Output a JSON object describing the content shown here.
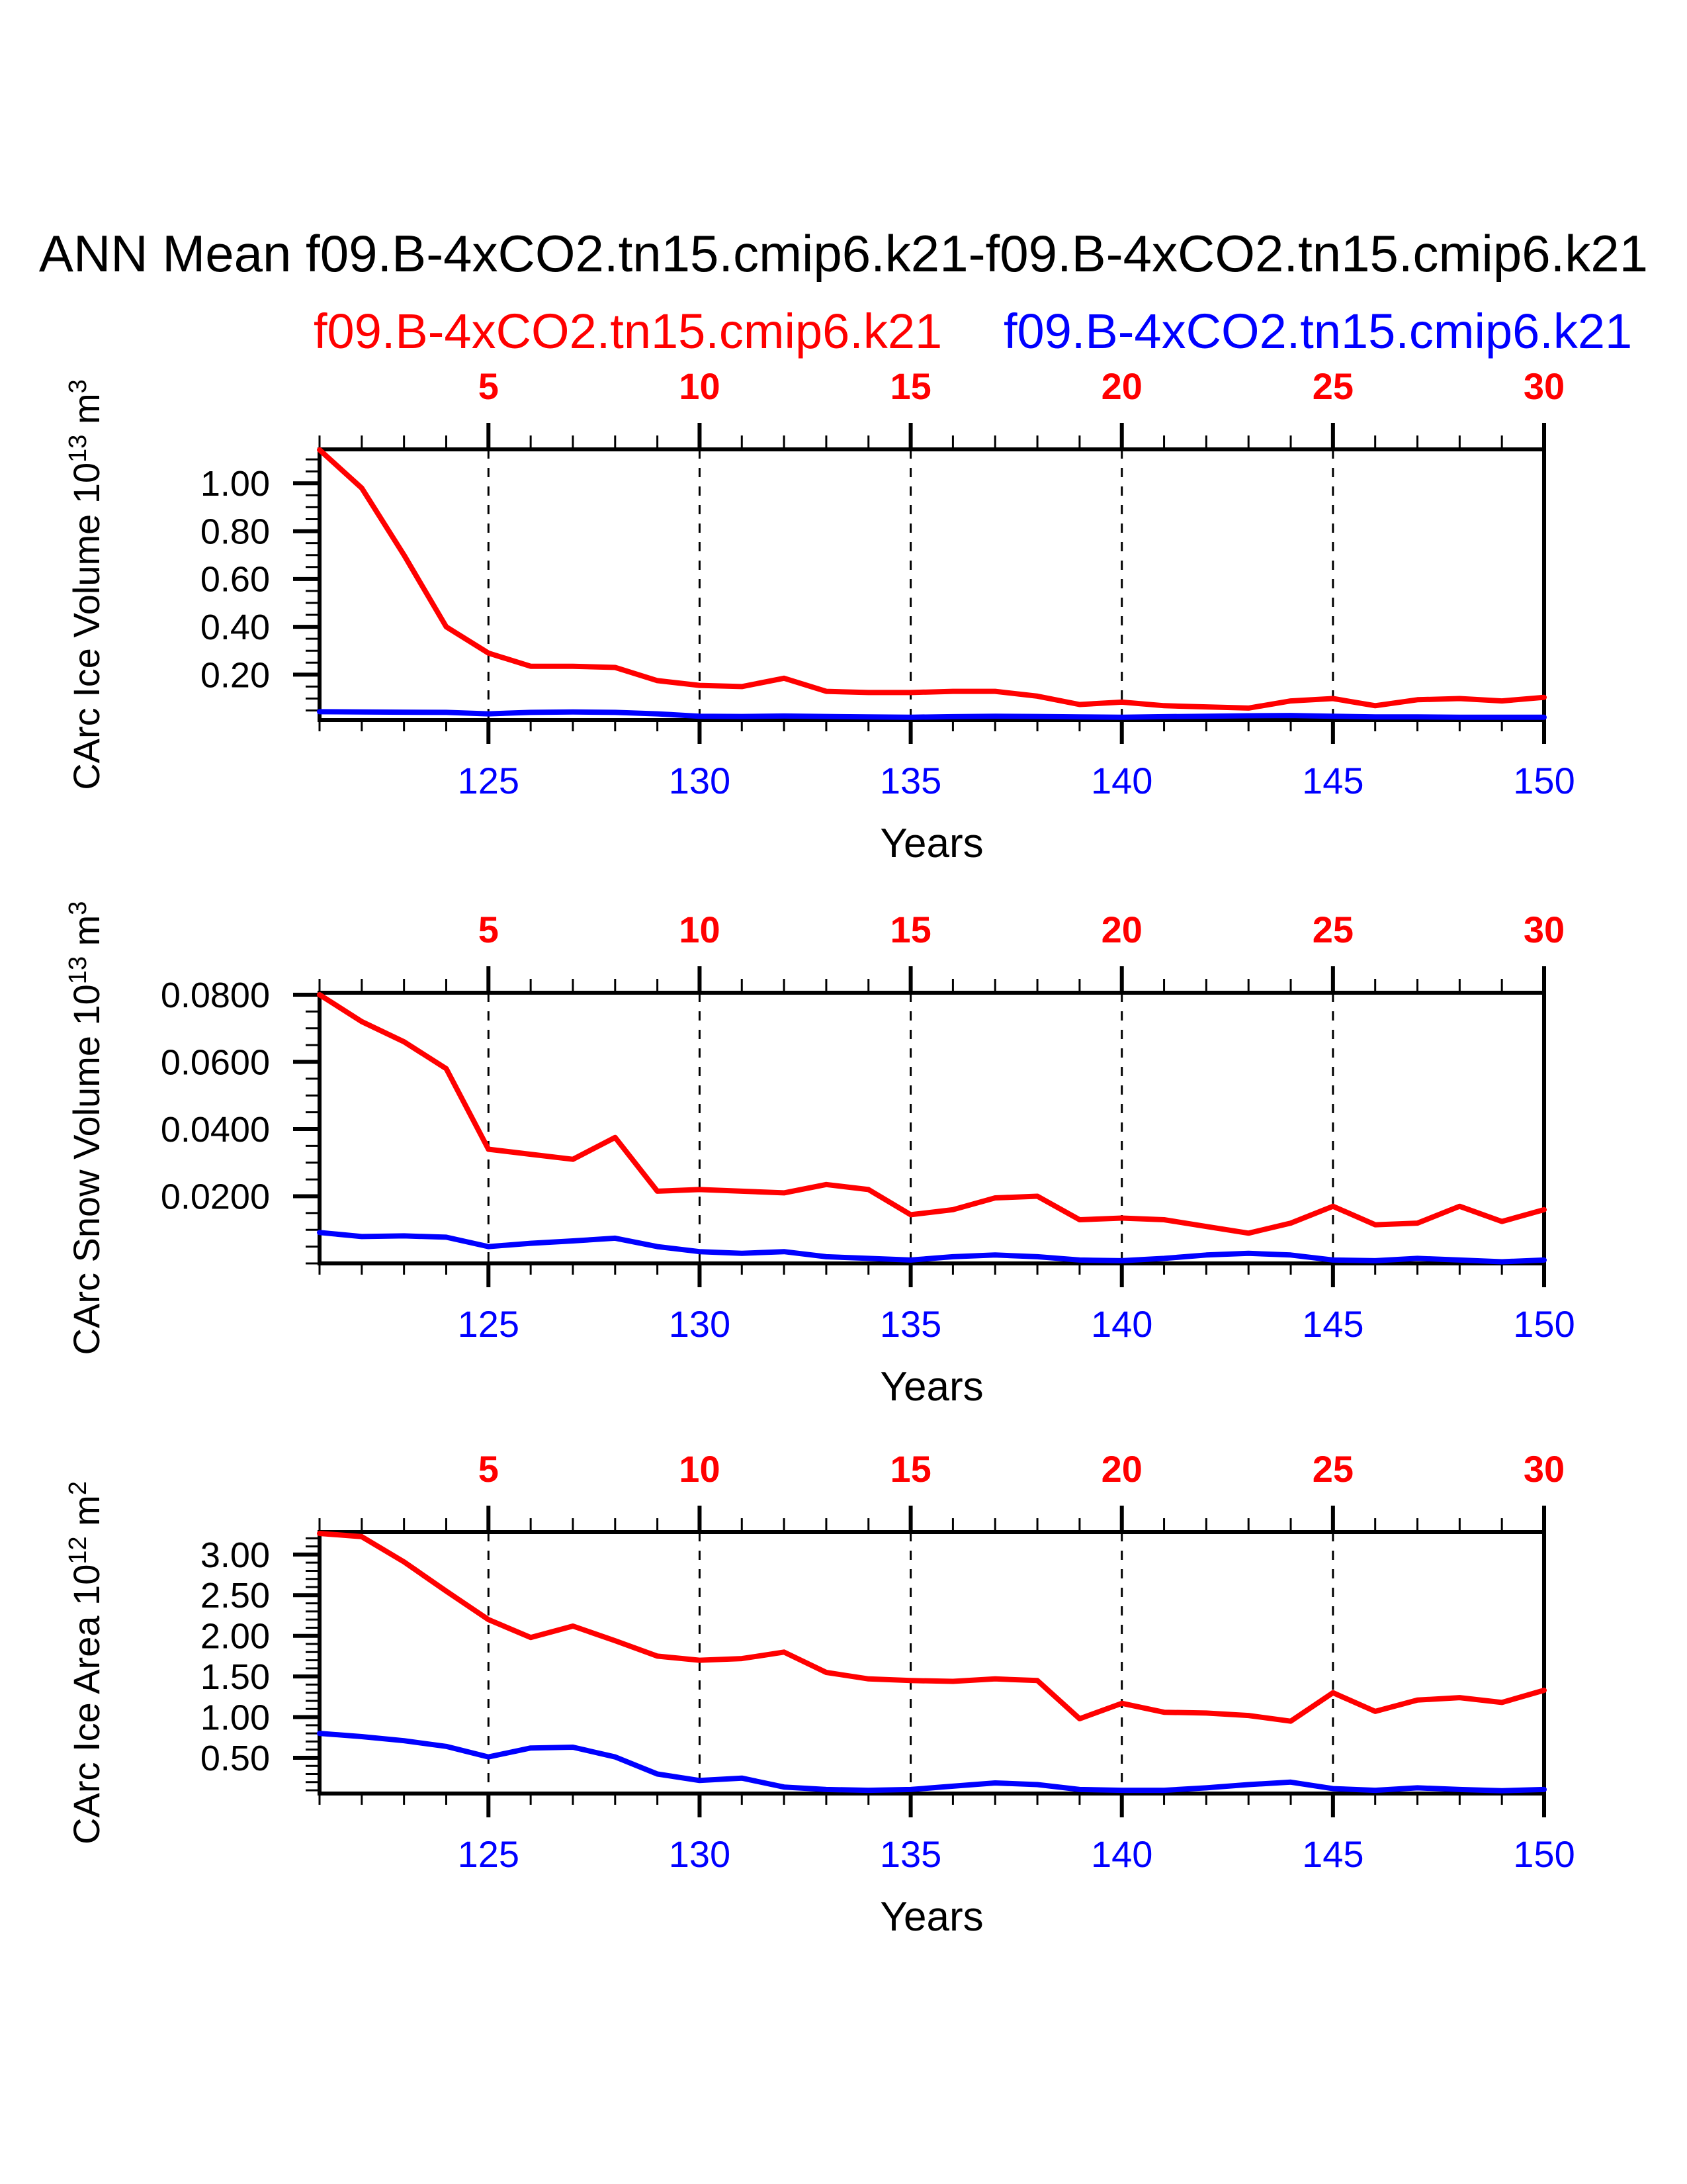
{
  "title": "ANN Mean f09.B-4xCO2.tn15.cmip6.k21-f09.B-4xCO2.tn15.cmip6.k21",
  "legend": {
    "series": [
      {
        "label": "f09.B-4xCO2.tn15.cmip6.k21",
        "color": "#ff0000"
      },
      {
        "label": "f09.B-4xCO2.tn15.cmip6.k21",
        "color": "#0000ff"
      }
    ]
  },
  "colors": {
    "red": "#ff0000",
    "blue": "#0000ff",
    "axis": "#000000",
    "background": "#ffffff"
  },
  "years": [
    121,
    122,
    123,
    124,
    125,
    126,
    127,
    128,
    129,
    130,
    131,
    132,
    133,
    134,
    135,
    136,
    137,
    138,
    139,
    140,
    141,
    142,
    143,
    144,
    145,
    146,
    147,
    148,
    149,
    150
  ],
  "chart_data": [
    {
      "id": "ice-volume",
      "type": "line",
      "ylabel": {
        "text": "CArc Ice Volume",
        "scale": "10",
        "scale_exp": "13",
        "unit": "m",
        "unit_exp": "3"
      },
      "xlabel": "Years",
      "top_axis_ticks": [
        5,
        10,
        15,
        20,
        25,
        30
      ],
      "bottom_axis_ticks": [
        125,
        130,
        135,
        140,
        145,
        150
      ],
      "grid_years": [
        125,
        130,
        135,
        140,
        145
      ],
      "top_axis_offset": -120,
      "ylim": [
        0.01,
        1.142
      ],
      "ytick_values": [
        0.2,
        0.4,
        0.6,
        0.8,
        1.0
      ],
      "ytick_labels": [
        "0.20",
        "0.40",
        "0.60",
        "0.80",
        "1.00"
      ],
      "y_minor_step": 0.05,
      "grid": "x-dashed",
      "legend_position": "top",
      "series": [
        {
          "name": "f09.B-4xCO2.tn15.cmip6.k21",
          "color": "#ff0000",
          "values": [
            1.14,
            0.98,
            0.7,
            0.4,
            0.29,
            0.235,
            0.235,
            0.23,
            0.175,
            0.155,
            0.15,
            0.185,
            0.13,
            0.125,
            0.125,
            0.13,
            0.13,
            0.11,
            0.075,
            0.085,
            0.07,
            0.065,
            0.06,
            0.09,
            0.1,
            0.07,
            0.095,
            0.1,
            0.09,
            0.105
          ]
        },
        {
          "name": "f09.B-4xCO2.tn15.cmip6.k21",
          "color": "#0000ff",
          "values": [
            0.045,
            0.044,
            0.043,
            0.042,
            0.036,
            0.042,
            0.044,
            0.042,
            0.036,
            0.026,
            0.025,
            0.027,
            0.025,
            0.023,
            0.022,
            0.024,
            0.026,
            0.025,
            0.023,
            0.022,
            0.024,
            0.026,
            0.028,
            0.029,
            0.026,
            0.023,
            0.023,
            0.022,
            0.022,
            0.022
          ]
        }
      ]
    },
    {
      "id": "snow-volume",
      "type": "line",
      "ylabel": {
        "text": "CArc Snow Volume",
        "scale": "10",
        "scale_exp": "13",
        "unit": "m",
        "unit_exp": "3"
      },
      "xlabel": "Years",
      "top_axis_ticks": [
        5,
        10,
        15,
        20,
        25,
        30
      ],
      "bottom_axis_ticks": [
        125,
        130,
        135,
        140,
        145,
        150
      ],
      "grid_years": [
        125,
        130,
        135,
        140,
        145
      ],
      "top_axis_offset": -120,
      "ylim": [
        0.0,
        0.0806
      ],
      "ytick_values": [
        0.02,
        0.04,
        0.06,
        0.08
      ],
      "ytick_labels": [
        "0.0200",
        "0.0400",
        "0.0600",
        "0.0800"
      ],
      "y_minor_step": 0.005,
      "grid": "x-dashed",
      "legend_position": "top",
      "series": [
        {
          "name": "f09.B-4xCO2.tn15.cmip6.k21",
          "color": "#ff0000",
          "values": [
            0.08,
            0.072,
            0.066,
            0.058,
            0.034,
            0.0325,
            0.031,
            0.0375,
            0.0215,
            0.022,
            0.0215,
            0.021,
            0.0235,
            0.022,
            0.0145,
            0.016,
            0.0195,
            0.02,
            0.013,
            0.0135,
            0.013,
            0.011,
            0.009,
            0.012,
            0.017,
            0.0115,
            0.012,
            0.017,
            0.0125,
            0.016
          ]
        },
        {
          "name": "f09.B-4xCO2.tn15.cmip6.k21",
          "color": "#0000ff",
          "values": [
            0.0092,
            0.008,
            0.0082,
            0.0078,
            0.005,
            0.006,
            0.0067,
            0.0075,
            0.005,
            0.0035,
            0.003,
            0.0035,
            0.002,
            0.0015,
            0.001,
            0.002,
            0.0025,
            0.002,
            0.001,
            0.0008,
            0.0015,
            0.0025,
            0.003,
            0.0025,
            0.001,
            0.0008,
            0.0015,
            0.001,
            0.0005,
            0.001
          ]
        }
      ]
    },
    {
      "id": "ice-area",
      "type": "line",
      "ylabel": {
        "text": "CArc Ice Area",
        "scale": "10",
        "scale_exp": "12",
        "unit": "m",
        "unit_exp": "2"
      },
      "xlabel": "Years",
      "top_axis_ticks": [
        5,
        10,
        15,
        20,
        25,
        30
      ],
      "bottom_axis_ticks": [
        125,
        130,
        135,
        140,
        145,
        150
      ],
      "grid_years": [
        125,
        130,
        135,
        140,
        145
      ],
      "top_axis_offset": -120,
      "ylim": [
        0.06,
        3.276
      ],
      "ytick_values": [
        0.5,
        1.0,
        1.5,
        2.0,
        2.5,
        3.0
      ],
      "ytick_labels": [
        "0.50",
        "1.00",
        "1.50",
        "2.00",
        "2.50",
        "3.00"
      ],
      "y_minor_step": 0.1,
      "grid": "x-dashed",
      "legend_position": "top",
      "series": [
        {
          "name": "f09.B-4xCO2.tn15.cmip6.k21",
          "color": "#ff0000",
          "values": [
            3.26,
            3.22,
            2.91,
            2.55,
            2.2,
            1.98,
            2.12,
            1.94,
            1.75,
            1.7,
            1.72,
            1.8,
            1.55,
            1.47,
            1.45,
            1.44,
            1.47,
            1.45,
            0.98,
            1.17,
            1.06,
            1.05,
            1.02,
            0.95,
            1.3,
            1.07,
            1.21,
            1.24,
            1.18,
            1.33
          ]
        },
        {
          "name": "f09.B-4xCO2.tn15.cmip6.k21",
          "color": "#0000ff",
          "values": [
            0.8,
            0.76,
            0.71,
            0.64,
            0.51,
            0.62,
            0.63,
            0.51,
            0.3,
            0.22,
            0.25,
            0.14,
            0.11,
            0.1,
            0.11,
            0.15,
            0.19,
            0.17,
            0.11,
            0.1,
            0.1,
            0.13,
            0.17,
            0.2,
            0.12,
            0.1,
            0.13,
            0.11,
            0.095,
            0.11
          ]
        }
      ]
    }
  ]
}
